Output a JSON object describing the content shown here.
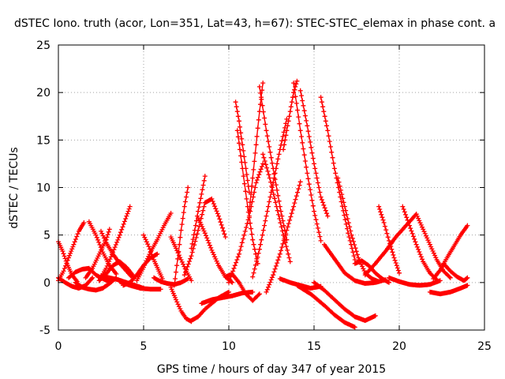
{
  "chart_data": {
    "type": "scatter",
    "title": "dSTEC Iono. truth (acor, Lon=351, Lat=43, h=67): STEC-STEC_elemax in phase cont. a",
    "xlabel": "GPS time / hours of day 347 of year 2015",
    "ylabel": "dSTEC  / TECUs",
    "xlim": [
      0,
      25
    ],
    "ylim": [
      -5,
      25
    ],
    "x_ticks": [
      0,
      5,
      10,
      15,
      20,
      25
    ],
    "y_ticks": [
      -5,
      0,
      5,
      10,
      15,
      20,
      25
    ],
    "grid": true,
    "marker": "plus",
    "color": "#ff0000",
    "series": [
      {
        "x": [
          0.0,
          0.3,
          0.6,
          0.9,
          1.2,
          1.5
        ],
        "y": [
          0.2,
          1.2,
          2.6,
          4.0,
          5.4,
          6.3
        ]
      },
      {
        "x": [
          0.0,
          0.25,
          0.5,
          0.8,
          1.1
        ],
        "y": [
          4.3,
          3.3,
          2.0,
          0.8,
          0.1
        ]
      },
      {
        "x": [
          0.0,
          0.4,
          0.8,
          1.2,
          1.6,
          2.0
        ],
        "y": [
          0.5,
          0.0,
          -0.4,
          -0.6,
          -0.3,
          0.5
        ]
      },
      {
        "x": [
          0.6,
          1.0,
          1.4,
          1.8,
          2.2,
          2.6,
          3.0
        ],
        "y": [
          0.5,
          1.1,
          1.4,
          1.5,
          0.8,
          0.4,
          0.1
        ]
      },
      {
        "x": [
          1.0,
          1.4,
          1.8,
          2.2,
          2.6,
          3.0,
          3.4
        ],
        "y": [
          0.0,
          -0.5,
          -0.7,
          -0.8,
          -0.6,
          -0.1,
          0.5
        ]
      },
      {
        "x": [
          1.8,
          2.2,
          2.6,
          3.0,
          3.4
        ],
        "y": [
          6.4,
          5.0,
          3.2,
          1.8,
          0.9
        ]
      },
      {
        "x": [
          2.4,
          2.8,
          3.2,
          3.6,
          4.0,
          4.4
        ],
        "y": [
          0.2,
          0.9,
          1.8,
          2.2,
          1.6,
          0.7
        ]
      },
      {
        "x": [
          1.6,
          2.0,
          2.4,
          2.8,
          3.0
        ],
        "y": [
          0.5,
          1.5,
          3.0,
          4.5,
          5.6
        ]
      },
      {
        "x": [
          2.5,
          2.8,
          3.2,
          3.6,
          4.0,
          4.3
        ],
        "y": [
          5.4,
          4.2,
          3.0,
          2.0,
          1.2,
          0.6
        ]
      },
      {
        "x": [
          2.5,
          3.0,
          3.5,
          4.0,
          4.5,
          5.0
        ],
        "y": [
          0.7,
          0.5,
          0.3,
          0.0,
          -0.3,
          -0.6
        ]
      },
      {
        "x": [
          2.4,
          2.8,
          3.2,
          3.6,
          4.0,
          4.2
        ],
        "y": [
          0.2,
          1.5,
          3.2,
          5.0,
          7.0,
          8.0
        ]
      },
      {
        "x": [
          3.6,
          4.2,
          4.8,
          5.4,
          6.0
        ],
        "y": [
          0.1,
          -0.3,
          -0.6,
          -0.7,
          -0.7
        ]
      },
      {
        "x": [
          3.8,
          4.2,
          4.6,
          5.0,
          5.4,
          5.8
        ],
        "y": [
          -0.3,
          0.0,
          0.8,
          1.8,
          2.6,
          3.0
        ]
      },
      {
        "x": [
          5.0,
          5.3,
          5.6,
          5.9,
          6.1
        ],
        "y": [
          5.0,
          3.8,
          2.4,
          1.2,
          0.4
        ]
      },
      {
        "x": [
          4.6,
          5.0,
          5.4,
          5.8,
          6.2,
          6.6
        ],
        "y": [
          0.2,
          1.6,
          3.2,
          4.5,
          6.0,
          7.3
        ]
      },
      {
        "x": [
          5.6,
          6.0,
          6.4,
          6.8,
          7.2,
          7.6
        ],
        "y": [
          0.5,
          0.1,
          -0.1,
          -0.2,
          0.0,
          0.4
        ]
      },
      {
        "x": [
          6.6,
          6.9,
          7.2,
          7.5,
          7.8
        ],
        "y": [
          4.8,
          3.6,
          2.4,
          1.2,
          0.2
        ]
      },
      {
        "x": [
          6.6,
          6.9,
          7.2,
          7.5,
          7.8
        ],
        "y": [
          -0.5,
          -1.8,
          -3.0,
          -3.8,
          -4.1
        ]
      },
      {
        "x": [
          7.8,
          8.2,
          8.6,
          9.0,
          9.4,
          10.0
        ],
        "y": [
          -4.0,
          -3.6,
          -2.8,
          -2.2,
          -1.6,
          -1.0
        ]
      },
      {
        "x": [
          6.8,
          7.0,
          7.2,
          7.4,
          7.6
        ],
        "y": [
          -0.3,
          2.5,
          5.5,
          8.0,
          10.0
        ]
      },
      {
        "x": [
          7.4,
          7.8,
          8.2,
          8.6,
          9.0,
          9.4,
          9.8
        ],
        "y": [
          0.8,
          2.8,
          5.5,
          8.4,
          8.8,
          7.0,
          4.8
        ]
      },
      {
        "x": [
          7.8,
          8.0,
          8.2,
          8.4,
          8.6
        ],
        "y": [
          3.6,
          5.5,
          7.5,
          9.3,
          11.2
        ]
      },
      {
        "x": [
          8.2,
          8.6,
          9.0,
          9.4,
          9.8,
          10.2
        ],
        "y": [
          6.8,
          5.2,
          3.4,
          1.8,
          0.6,
          0.0
        ]
      },
      {
        "x": [
          8.4,
          9.0,
          9.6,
          10.2,
          10.8,
          11.4
        ],
        "y": [
          -2.2,
          -1.8,
          -1.6,
          -1.4,
          -1.1,
          -1.0
        ]
      },
      {
        "x": [
          9.8,
          10.2,
          10.6,
          11.0,
          11.4,
          11.8
        ],
        "y": [
          0.6,
          0.9,
          0.0,
          -1.2,
          -1.9,
          -1.2
        ]
      },
      {
        "x": [
          10.4,
          10.6,
          10.8,
          11.0,
          11.2
        ],
        "y": [
          19.0,
          17.0,
          14.5,
          12.0,
          9.5
        ]
      },
      {
        "x": [
          10.5,
          10.8,
          11.1,
          11.4,
          11.7
        ],
        "y": [
          16.0,
          12.0,
          8.0,
          4.5,
          2.0
        ]
      },
      {
        "x": [
          10.0,
          10.6,
          11.2,
          11.6,
          12.0
        ],
        "y": [
          0.0,
          3.0,
          7.0,
          10.5,
          12.5
        ]
      },
      {
        "x": [
          11.2,
          11.4,
          11.6,
          11.8,
          12.0
        ],
        "y": [
          7.6,
          11.0,
          14.5,
          18.0,
          21.0
        ]
      },
      {
        "x": [
          11.8,
          12.2,
          12.6,
          13.0,
          13.4
        ],
        "y": [
          20.6,
          16.0,
          12.0,
          8.0,
          4.5
        ]
      },
      {
        "x": [
          11.4,
          11.8,
          12.2,
          12.6,
          13.0,
          13.4
        ],
        "y": [
          0.6,
          3.5,
          7.0,
          10.5,
          14.0,
          17.2
        ]
      },
      {
        "x": [
          12.0,
          12.4,
          12.8,
          13.2,
          13.6
        ],
        "y": [
          13.5,
          11.0,
          8.0,
          5.0,
          2.2
        ]
      },
      {
        "x": [
          12.2,
          12.6,
          13.0,
          13.4,
          13.8,
          14.2
        ],
        "y": [
          -1.0,
          0.8,
          3.0,
          5.5,
          8.0,
          10.6
        ]
      },
      {
        "x": [
          13.2,
          13.4,
          13.6,
          13.8,
          14.0
        ],
        "y": [
          14.0,
          16.0,
          18.0,
          20.0,
          21.2
        ]
      },
      {
        "x": [
          13.8,
          14.2,
          14.6,
          15.0,
          15.4
        ],
        "y": [
          21.0,
          16.0,
          11.5,
          7.5,
          4.4
        ]
      },
      {
        "x": [
          13.0,
          13.6,
          14.2,
          14.8,
          15.4
        ],
        "y": [
          0.4,
          0.0,
          -0.3,
          -0.6,
          -0.4
        ]
      },
      {
        "x": [
          14.2,
          14.6,
          15.0,
          15.4,
          15.8
        ],
        "y": [
          20.2,
          16.5,
          12.5,
          9.0,
          7.0
        ]
      },
      {
        "x": [
          15.4,
          15.8,
          16.2,
          16.6,
          17.0,
          17.4
        ],
        "y": [
          19.5,
          16.0,
          12.0,
          8.5,
          5.2,
          2.4
        ]
      },
      {
        "x": [
          14.0,
          14.8,
          15.6,
          16.2,
          16.8,
          17.4
        ],
        "y": [
          -0.3,
          -1.2,
          -2.4,
          -3.4,
          -4.2,
          -4.7
        ]
      },
      {
        "x": [
          15.0,
          15.6,
          16.2,
          16.8,
          17.4,
          18.0,
          18.6
        ],
        "y": [
          0.0,
          -0.8,
          -1.8,
          -2.8,
          -3.6,
          -4.0,
          -3.5
        ]
      },
      {
        "x": [
          15.6,
          16.2,
          16.8,
          17.4,
          18.0,
          18.6,
          19.2
        ],
        "y": [
          4.0,
          2.5,
          1.0,
          0.2,
          -0.1,
          0.0,
          0.3
        ]
      },
      {
        "x": [
          16.4,
          16.8,
          17.2,
          17.6,
          18.0,
          18.4,
          18.8
        ],
        "y": [
          11.0,
          8.0,
          5.0,
          2.6,
          1.0,
          0.4,
          0.1
        ]
      },
      {
        "x": [
          17.4,
          17.8,
          18.2,
          18.6,
          19.0,
          19.4
        ],
        "y": [
          2.0,
          2.3,
          1.8,
          1.0,
          0.4,
          0.0
        ]
      },
      {
        "x": [
          18.8,
          19.1,
          19.4,
          19.7,
          20.0
        ],
        "y": [
          8.0,
          6.3,
          4.4,
          2.6,
          1.0
        ]
      },
      {
        "x": [
          18.0,
          18.6,
          19.2,
          19.8,
          20.4,
          21.0
        ],
        "y": [
          0.8,
          2.0,
          3.3,
          4.8,
          6.0,
          7.2
        ]
      },
      {
        "x": [
          20.2,
          20.6,
          21.0,
          21.4,
          21.8,
          22.2
        ],
        "y": [
          8.0,
          6.0,
          4.0,
          2.2,
          1.0,
          0.3
        ]
      },
      {
        "x": [
          19.4,
          20.0,
          20.6,
          21.2,
          21.8,
          22.4
        ],
        "y": [
          0.5,
          0.1,
          -0.2,
          -0.3,
          -0.2,
          0.2
        ]
      },
      {
        "x": [
          21.0,
          21.4,
          21.8,
          22.2,
          22.6,
          23.0
        ],
        "y": [
          7.2,
          5.6,
          4.0,
          2.4,
          1.2,
          0.5
        ]
      },
      {
        "x": [
          21.8,
          22.4,
          23.0,
          23.6,
          24.0
        ],
        "y": [
          -1.0,
          -1.2,
          -1.0,
          -0.6,
          -0.3
        ]
      },
      {
        "x": [
          22.0,
          22.4,
          22.8,
          23.2,
          23.6,
          24.0
        ],
        "y": [
          0.4,
          1.3,
          2.6,
          3.8,
          5.0,
          6.0
        ]
      },
      {
        "x": [
          22.6,
          23.0,
          23.4,
          23.8,
          24.0
        ],
        "y": [
          2.0,
          1.2,
          0.6,
          0.2,
          0.5
        ]
      }
    ]
  }
}
